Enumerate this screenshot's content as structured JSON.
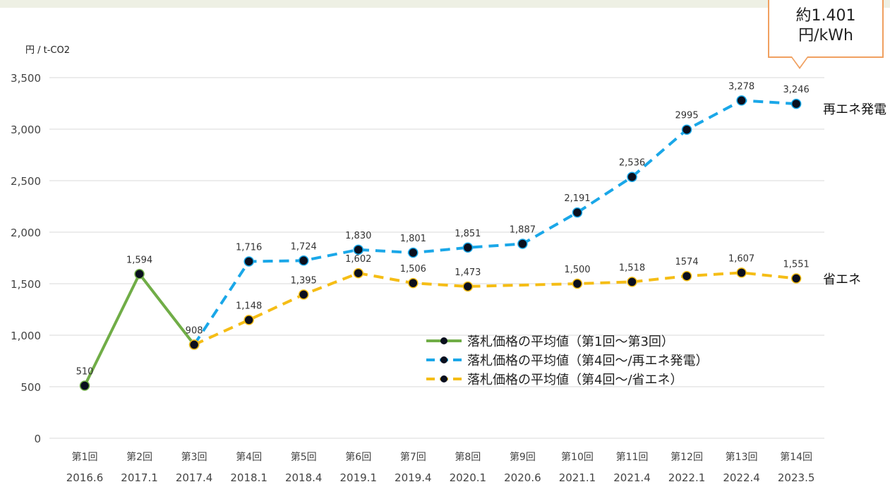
{
  "unit_label": "円 / t-CO2",
  "callout": {
    "line1": "約1.401",
    "line2": "円/kWh"
  },
  "series_end_labels": {
    "renewable": "再エネ発電",
    "saving": "省エネ"
  },
  "colors": {
    "green": "#70ad47",
    "blue": "#1aa7e8",
    "yellow": "#f5bd15",
    "grid": "#d9d9d9",
    "callout_border": "#f0a060"
  },
  "chart_data": {
    "type": "line",
    "ylabel": "円 / t-CO2",
    "ylim": [
      0,
      3500
    ],
    "yticks": [
      "0",
      "500",
      "1,000",
      "1,500",
      "2,000",
      "2,500",
      "3,000",
      "3,500"
    ],
    "ytick_values": [
      0,
      500,
      1000,
      1500,
      2000,
      2500,
      3000,
      3500
    ],
    "categories": [
      "第1回",
      "第2回",
      "第3回",
      "第4回",
      "第5回",
      "第6回",
      "第7回",
      "第8回",
      "第9回",
      "第10回",
      "第11回",
      "第12回",
      "第13回",
      "第14回"
    ],
    "dates": [
      "2016.6",
      "2017.1",
      "2017.4",
      "2018.1",
      "2018.4",
      "2019.1",
      "2019.4",
      "2020.1",
      "2020.6",
      "2021.1",
      "2021.4",
      "2022.1",
      "2022.4",
      "2023.5"
    ],
    "grid": true,
    "legend_position": "center-right",
    "series": [
      {
        "name": "落札価格の平均値（第1回〜第3回）",
        "style": "solid",
        "color": "#70ad47",
        "values": [
          510,
          1594,
          908,
          null,
          null,
          null,
          null,
          null,
          null,
          null,
          null,
          null,
          null,
          null
        ],
        "labels": [
          "510",
          "1,594",
          "908",
          null,
          null,
          null,
          null,
          null,
          null,
          null,
          null,
          null,
          null,
          null
        ]
      },
      {
        "name": "落札価格の平均値（第4回〜/再エネ発電）",
        "style": "dashed",
        "color": "#1aa7e8",
        "values": [
          null,
          null,
          908,
          1716,
          1724,
          1830,
          1801,
          1851,
          1887,
          2191,
          2536,
          2995,
          3278,
          3246
        ],
        "labels": [
          null,
          null,
          null,
          "1,716",
          "1,724",
          "1,830",
          "1,801",
          "1,851",
          "1,887",
          "2,191",
          "2,536",
          "2995",
          "3,278",
          "3,246"
        ]
      },
      {
        "name": "落札価格の平均値（第4回〜/省エネ）",
        "style": "dashed",
        "color": "#f5bd15",
        "values": [
          null,
          null,
          908,
          1148,
          1395,
          1602,
          1506,
          1473,
          null,
          1500,
          1518,
          1574,
          1607,
          1551
        ],
        "labels": [
          null,
          null,
          null,
          "1,148",
          "1,395",
          "1,602",
          "1,506",
          "1,473",
          null,
          "1,500",
          "1,518",
          "1574",
          "1,607",
          "1,551"
        ]
      }
    ]
  }
}
